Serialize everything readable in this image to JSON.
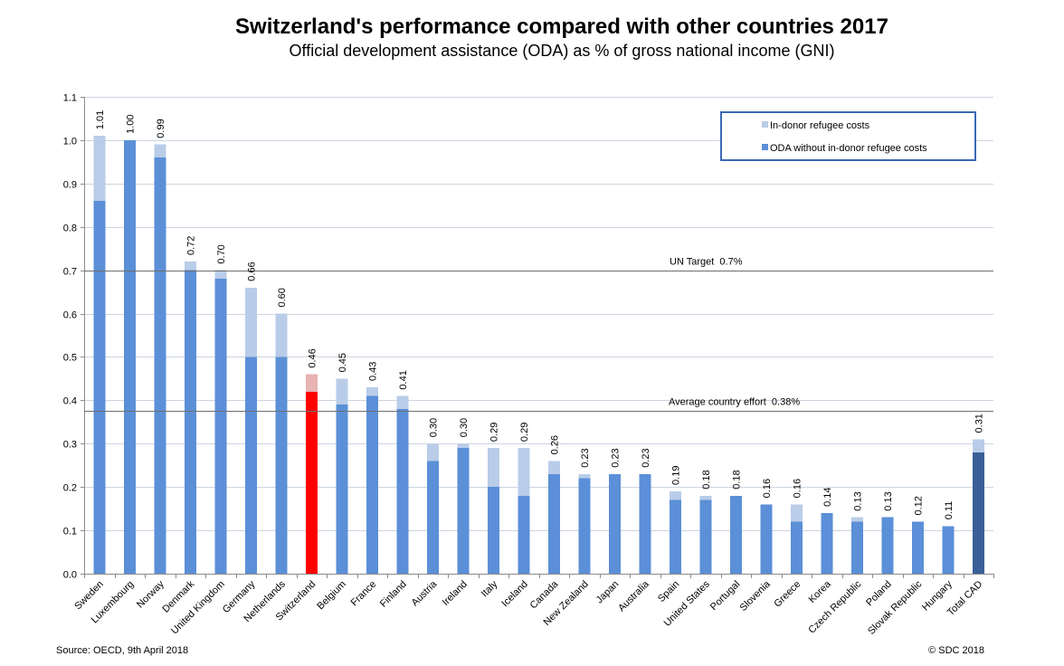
{
  "chart_data": {
    "type": "bar",
    "stacked": true,
    "title": "Switzerland's performance compared with other countries 2017",
    "subtitle": "Official development assistance (ODA) as % of gross national income (GNI)",
    "xlabel": "",
    "ylabel": "",
    "ylim": [
      0,
      1.1
    ],
    "yticks": [
      0,
      0.1,
      0.2,
      0.3,
      0.4,
      0.5,
      0.6,
      0.7,
      0.8,
      0.9,
      1.0,
      1.1
    ],
    "ytick_labels": [
      "0.0",
      "0.1",
      "0.2",
      "0.3",
      "0.4",
      "0.5",
      "0.6",
      "0.7",
      "0.8",
      "0.9",
      "1.0",
      "1.1"
    ],
    "grid": true,
    "legend_position": "top-right",
    "categories": [
      "Sweden",
      "Luxembourg",
      "Norway",
      "Denmark",
      "United Kingdom",
      "Germany",
      "Netherlands",
      "Switzerland",
      "Belgium",
      "France",
      "Finland",
      "Austria",
      "Ireland",
      "Italy",
      "Iceland",
      "Canada",
      "New Zealand",
      "Japan",
      "Australia",
      "Spain",
      "United States",
      "Portugal",
      "Slovenia",
      "Greece",
      "Korea",
      "Czech Republic",
      "Poland",
      "Slovak Republic",
      "Hungary",
      "Total CAD"
    ],
    "series": [
      {
        "name": "ODA without in-donor refugee costs",
        "values": [
          0.86,
          1.0,
          0.96,
          0.7,
          0.68,
          0.5,
          0.5,
          0.42,
          0.39,
          0.41,
          0.38,
          0.26,
          0.29,
          0.2,
          0.18,
          0.23,
          0.22,
          0.23,
          0.23,
          0.17,
          0.17,
          0.18,
          0.16,
          0.12,
          0.14,
          0.12,
          0.13,
          0.12,
          0.11,
          0.28
        ]
      },
      {
        "name": "In-donor refugee costs",
        "values": [
          0.15,
          0.0,
          0.03,
          0.02,
          0.02,
          0.16,
          0.1,
          0.04,
          0.06,
          0.02,
          0.03,
          0.04,
          0.01,
          0.09,
          0.11,
          0.03,
          0.01,
          0.0,
          0.0,
          0.02,
          0.01,
          0.0,
          0.0,
          0.04,
          0.0,
          0.01,
          0.0,
          0.0,
          0.0,
          0.03
        ]
      }
    ],
    "data_labels": [
      "1.01",
      "1.00",
      "0.99",
      "0.72",
      "0.70",
      "0.66",
      "0.60",
      "0.46",
      "0.45",
      "0.43",
      "0.41",
      "0.30",
      "0.30",
      "0.29",
      "0.29",
      "0.26",
      "0.23",
      "0.23",
      "0.23",
      "0.19",
      "0.18",
      "0.18",
      "0.16",
      "0.16",
      "0.14",
      "0.13",
      "0.13",
      "0.12",
      "0.11",
      "0.31"
    ],
    "highlight_index": 7,
    "aggregate_index": 29,
    "reference_lines": [
      {
        "label": "UN Target  0.7%",
        "value": 0.7
      },
      {
        "label": "Average country effort  0.38%",
        "value": 0.375
      }
    ]
  },
  "footer": {
    "source": "Source: OECD, 9th April 2018",
    "copyright": "© SDC 2018"
  },
  "colors": {
    "oda": "#5b8fd7",
    "refugee": "#b9cde9",
    "highlight_oda": "#ff0000",
    "highlight_refugee": "#e8b3b3",
    "aggregate_oda": "#3a5f97",
    "aggregate_refugee": "#b9cde9",
    "grid": "#cbd5e0",
    "axis": "#8c8c8c",
    "reference_line": "#6e6e6e",
    "legend_border": "#3a68b4"
  }
}
